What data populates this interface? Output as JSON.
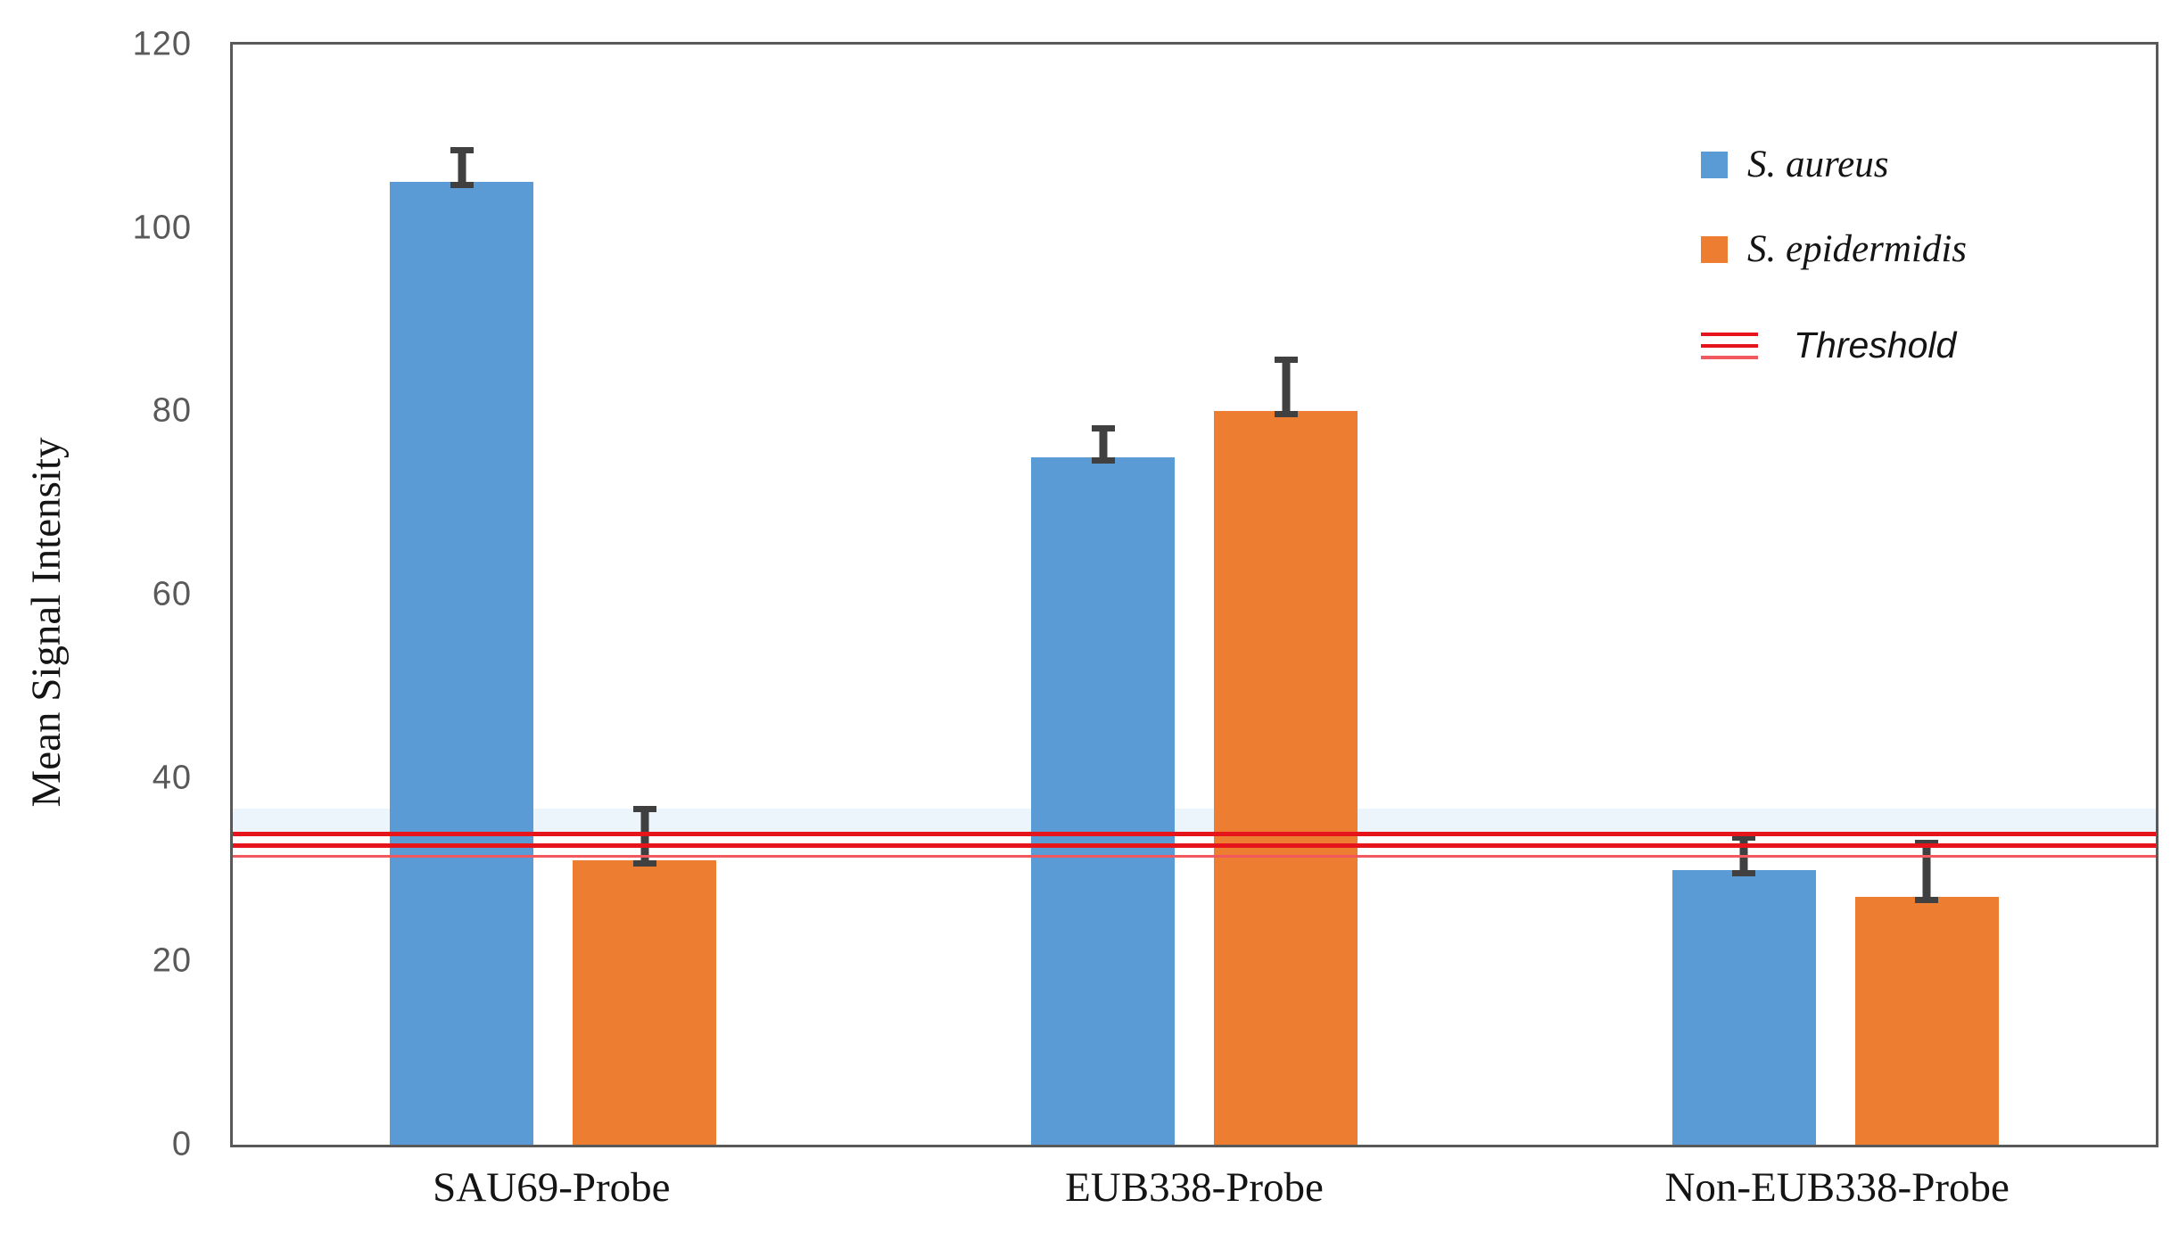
{
  "chart_data": {
    "type": "bar",
    "title": "",
    "xlabel": "",
    "ylabel": "Mean Signal Intensity",
    "ylim": [
      0,
      120
    ],
    "yticks": [
      0,
      20,
      40,
      60,
      80,
      100,
      120
    ],
    "grid": false,
    "legend_position": "top-right inside plot area",
    "categories": [
      "SAU69-Probe",
      "EUB338-Probe",
      "Non-EUB338-Probe"
    ],
    "series": [
      {
        "name": "S. aureus",
        "color": "#5B9BD5",
        "values": [
          105,
          75,
          30
        ],
        "errors_plus": [
          3.8,
          3.5,
          3.8
        ]
      },
      {
        "name": "S. epidermidis",
        "color": "#ED7D31",
        "values": [
          31,
          80,
          27
        ],
        "errors_plus": [
          6,
          6,
          6.3
        ]
      }
    ],
    "threshold": {
      "label": "Threshold",
      "lines": [
        {
          "value": 33.9,
          "thickness": 5,
          "color": "#E5151B"
        },
        {
          "value": 32.6,
          "thickness": 5,
          "color": "#E5151B"
        },
        {
          "value": 31.5,
          "thickness": 3,
          "color": "#F2595E"
        }
      ]
    },
    "error_bar_color": "#404040",
    "axis_color": "#595959",
    "tick_label_color": "#595959"
  }
}
